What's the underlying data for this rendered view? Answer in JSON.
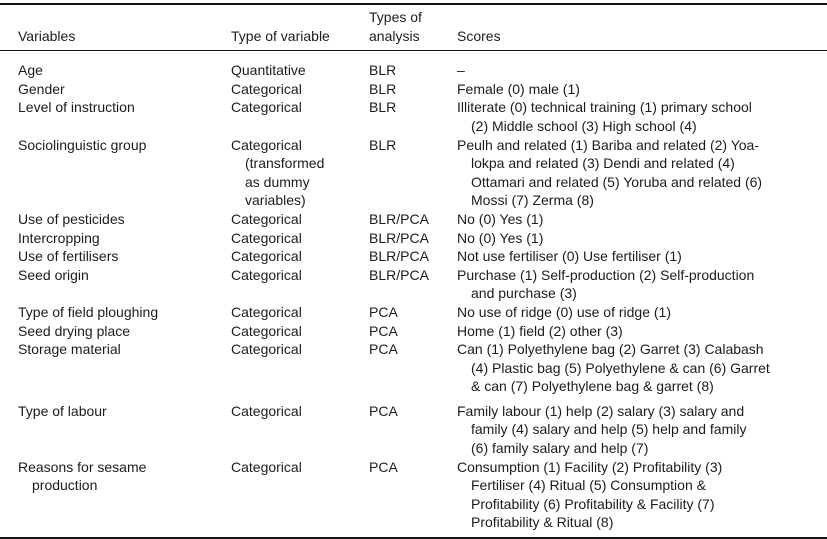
{
  "colors": {
    "background": "#ffffff",
    "text": "#1c1c1c",
    "rule": "#141414"
  },
  "table": {
    "columns": {
      "variables": "Variables",
      "type_of_variable": "Type of variable",
      "types_of_analysis": [
        "Types of",
        "analysis"
      ],
      "scores": "Scores"
    },
    "rows": [
      {
        "variable": "Age",
        "type": "Quantitative",
        "analysis": "BLR",
        "scores": "–"
      },
      {
        "variable": "Gender",
        "type": "Categorical",
        "analysis": "BLR",
        "scores": "Female (0) male (1)"
      },
      {
        "variable": "Level of instruction",
        "type": "Categorical",
        "analysis": "BLR",
        "scores": [
          "Illiterate (0) technical training (1) primary school",
          "(2) Middle school (3) High school (4)"
        ]
      },
      {
        "variable": "Sociolinguistic group",
        "type": [
          "Categorical",
          "(transformed",
          "as dummy",
          "variables)"
        ],
        "analysis": "BLR",
        "scores": [
          "Peulh and related (1) Bariba and related (2) Yoa-",
          "lokpa and related (3) Dendi and related (4)",
          "Ottamari and related (5) Yoruba and related (6)",
          "Mossi (7) Zerma (8)"
        ]
      },
      {
        "variable": "Use of pesticides",
        "type": "Categorical",
        "analysis": "BLR/PCA",
        "scores": "No (0) Yes (1)"
      },
      {
        "variable": "Intercropping",
        "type": "Categorical",
        "analysis": "BLR/PCA",
        "scores": "No (0) Yes (1)"
      },
      {
        "variable": "Use of fertilisers",
        "type": "Categorical",
        "analysis": "BLR/PCA",
        "scores": "Not use fertiliser (0) Use fertiliser (1)"
      },
      {
        "variable": "Seed origin",
        "type": "Categorical",
        "analysis": "BLR/PCA",
        "scores": [
          "Purchase (1) Self-production (2) Self-production",
          "and purchase (3)"
        ]
      },
      {
        "variable": "Type of field ploughing",
        "type": "Categorical",
        "analysis": "PCA",
        "scores": "No use of ridge (0) use of ridge (1)"
      },
      {
        "variable": "Seed drying place",
        "type": "Categorical",
        "analysis": "PCA",
        "scores": "Home (1) field (2) other (3)"
      },
      {
        "variable": "Storage material",
        "type": "Categorical",
        "analysis": "PCA",
        "scores": [
          "Can (1) Polyethylene bag (2) Garret (3) Calabash",
          "(4) Plastic bag (5) Polyethylene & can (6) Garret",
          "& can (7) Polyethylene bag & garret (8)"
        ]
      },
      {
        "variable": "Type of labour",
        "type": "Categorical",
        "analysis": "PCA",
        "scores": [
          "Family labour (1) help (2) salary (3) salary and",
          "family (4) salary and help (5) help and family",
          "(6) family salary and help (7)"
        ]
      },
      {
        "variable": [
          "Reasons for sesame",
          "production"
        ],
        "type": "Categorical",
        "analysis": "PCA",
        "scores": [
          "Consumption (1) Facility (2) Profitability (3)",
          "Fertiliser (4) Ritual (5) Consumption &",
          "Profitability (6) Profitability & Facility (7)",
          "Profitability & Ritual (8)"
        ]
      }
    ]
  }
}
